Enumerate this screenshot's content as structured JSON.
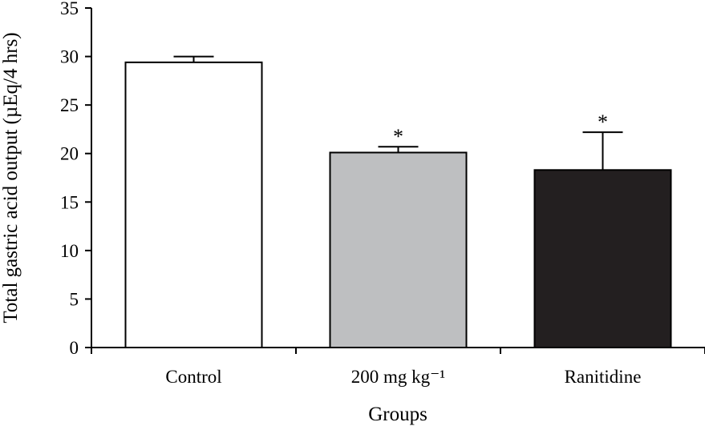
{
  "chart_data": {
    "type": "bar",
    "categories": [
      "Control",
      "200 mg kg⁻¹",
      "Ranitidine"
    ],
    "values": [
      29.4,
      20.1,
      18.3
    ],
    "errors": [
      0.6,
      0.6,
      3.9
    ],
    "significance": [
      "",
      "*",
      "*"
    ],
    "bar_colors": [
      "#ffffff",
      "#bebfc1",
      "#231f20"
    ],
    "title": "",
    "xlabel": "Groups",
    "ylabel": "Total gastric acid output (µEq/4 hrs)",
    "ylim": [
      0,
      35
    ],
    "yticks": [
      0,
      5,
      10,
      15,
      20,
      25,
      30,
      35
    ],
    "grid": false,
    "legend": "none"
  }
}
